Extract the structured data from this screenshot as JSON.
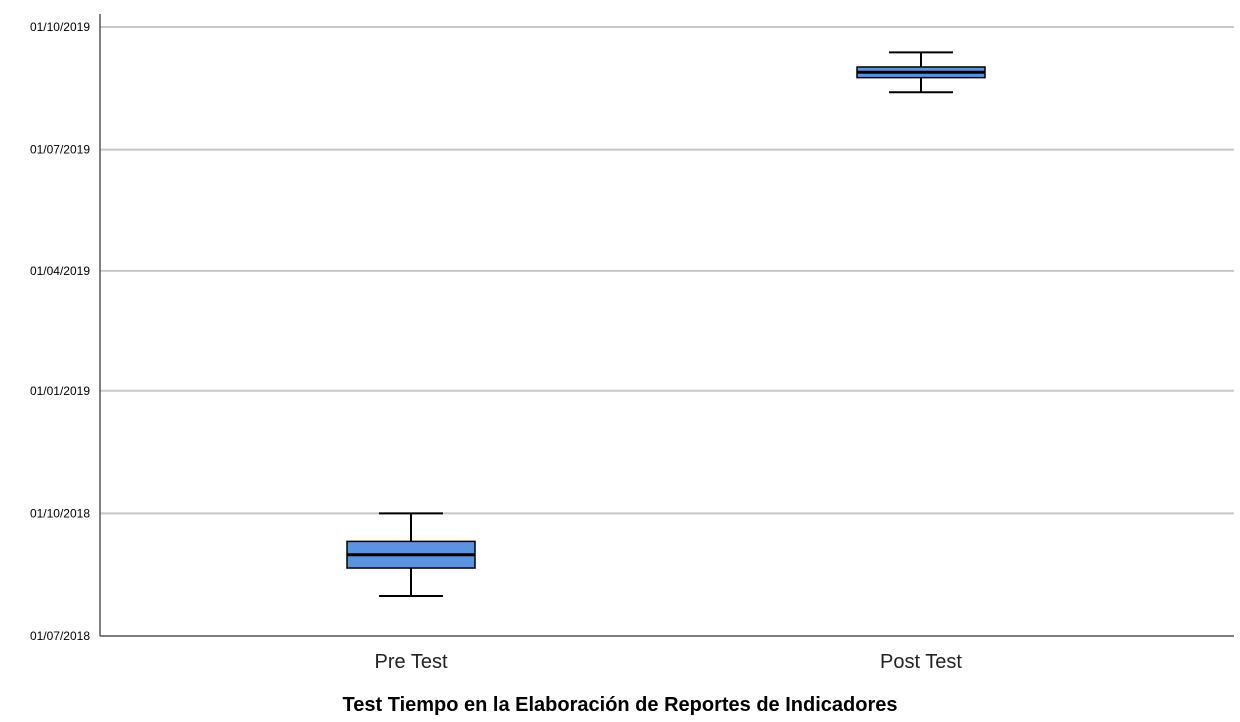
{
  "chart_data": {
    "type": "boxplot",
    "title": "",
    "xlabel": "Test Tiempo en la Elaboración de Reportes de Indicadores",
    "ylabel": "",
    "y_axis_type": "date",
    "y_tick_labels": [
      "01/07/2018",
      "01/10/2018",
      "01/01/2019",
      "01/04/2019",
      "01/07/2019",
      "01/10/2019"
    ],
    "y_ticks": [
      "2018-07-01",
      "2018-10-01",
      "2019-01-01",
      "2019-04-01",
      "2019-07-01",
      "2019-10-01"
    ],
    "ylim": [
      "2018-07-01",
      "2019-10-01"
    ],
    "grid": true,
    "legend": "none",
    "box_color": "#5B93E0",
    "categories": [
      "Pre Test",
      "Post Test"
    ],
    "boxes": [
      {
        "category": "Pre Test",
        "min": "2018-07-31",
        "q1": "2018-08-21",
        "median": "2018-08-31",
        "q3": "2018-09-10",
        "max": "2018-10-01"
      },
      {
        "category": "Post Test",
        "min": "2019-08-13",
        "q1": "2019-08-24",
        "median": "2019-08-28",
        "q3": "2019-09-01",
        "max": "2019-09-12"
      }
    ]
  }
}
